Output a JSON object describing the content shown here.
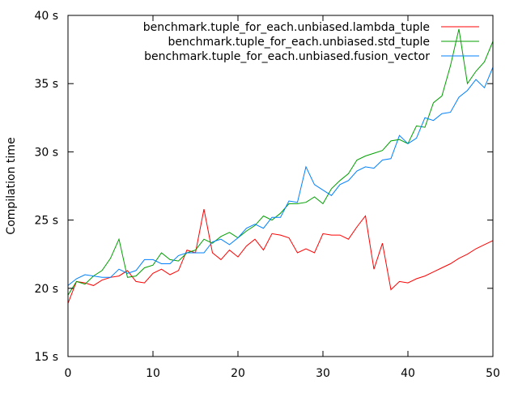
{
  "chart_data": {
    "type": "line",
    "title": "",
    "xlabel": "",
    "ylabel": "Compilation time",
    "xlim": [
      0,
      50
    ],
    "ylim": [
      15,
      40
    ],
    "grid": false,
    "legend_position": "top-right",
    "x_ticks": [
      {
        "value": 0,
        "label": "0"
      },
      {
        "value": 10,
        "label": "10"
      },
      {
        "value": 20,
        "label": "20"
      },
      {
        "value": 30,
        "label": "30"
      },
      {
        "value": 40,
        "label": "40"
      },
      {
        "value": 50,
        "label": "50"
      }
    ],
    "y_ticks": [
      {
        "value": 15,
        "label": "15 s"
      },
      {
        "value": 20,
        "label": "20 s"
      },
      {
        "value": 25,
        "label": "25 s"
      },
      {
        "value": 30,
        "label": "30 s"
      },
      {
        "value": 35,
        "label": "35 s"
      },
      {
        "value": 40,
        "label": "40 s"
      }
    ],
    "x": [
      0,
      1,
      2,
      3,
      4,
      5,
      6,
      7,
      8,
      9,
      10,
      11,
      12,
      13,
      14,
      15,
      16,
      17,
      18,
      19,
      20,
      21,
      22,
      23,
      24,
      25,
      26,
      27,
      28,
      29,
      30,
      31,
      32,
      33,
      34,
      35,
      36,
      37,
      38,
      39,
      40,
      41,
      42,
      43,
      44,
      45,
      46,
      47,
      48,
      49,
      50
    ],
    "series": [
      {
        "name": "benchmark.tuple_for_each.unbiased.lambda_tuple",
        "color": "#ff0000",
        "values": [
          18.9,
          20.5,
          20.4,
          20.2,
          20.6,
          20.8,
          20.9,
          21.3,
          20.5,
          20.4,
          21.1,
          21.4,
          21.0,
          21.3,
          22.8,
          22.6,
          25.8,
          22.6,
          22.1,
          22.8,
          22.3,
          23.1,
          23.6,
          22.8,
          24.0,
          23.9,
          23.7,
          22.6,
          22.9,
          22.6,
          24.0,
          23.9,
          23.9,
          23.6,
          24.5,
          25.3,
          21.4,
          23.3,
          19.9,
          20.5,
          20.4,
          20.7,
          20.9,
          21.2,
          21.5,
          21.8,
          22.2,
          22.5,
          22.9,
          23.2,
          23.5
        ]
      },
      {
        "name": "benchmark.tuple_for_each.unbiased.std_tuple",
        "color": "#00a000",
        "values": [
          19.5,
          20.5,
          20.3,
          20.9,
          21.3,
          22.2,
          23.6,
          20.8,
          20.9,
          21.5,
          21.7,
          22.6,
          22.1,
          22.0,
          22.6,
          22.8,
          23.6,
          23.3,
          23.8,
          24.1,
          23.7,
          24.2,
          24.6,
          25.3,
          25.0,
          25.5,
          26.2,
          26.2,
          26.3,
          26.7,
          26.2,
          27.3,
          27.9,
          28.4,
          29.4,
          29.7,
          29.9,
          30.1,
          30.8,
          30.9,
          30.6,
          31.9,
          31.8,
          33.6,
          34.1,
          36.3,
          39.0,
          35.0,
          35.9,
          36.6,
          38.1
        ]
      },
      {
        "name": "benchmark.tuple_for_each.unbiased.fusion_vector",
        "color": "#0080ff",
        "values": [
          20.2,
          20.7,
          21.0,
          20.9,
          20.8,
          20.8,
          21.4,
          21.1,
          21.3,
          22.1,
          22.1,
          21.8,
          21.8,
          22.4,
          22.6,
          22.6,
          22.6,
          23.4,
          23.6,
          23.2,
          23.7,
          24.4,
          24.7,
          24.4,
          25.2,
          25.2,
          26.4,
          26.3,
          28.9,
          27.6,
          27.2,
          26.8,
          27.6,
          27.9,
          28.6,
          28.9,
          28.8,
          29.4,
          29.5,
          31.2,
          30.6,
          31.0,
          32.5,
          32.3,
          32.8,
          32.9,
          34.0,
          34.5,
          35.3,
          34.7,
          36.2
        ]
      }
    ]
  }
}
